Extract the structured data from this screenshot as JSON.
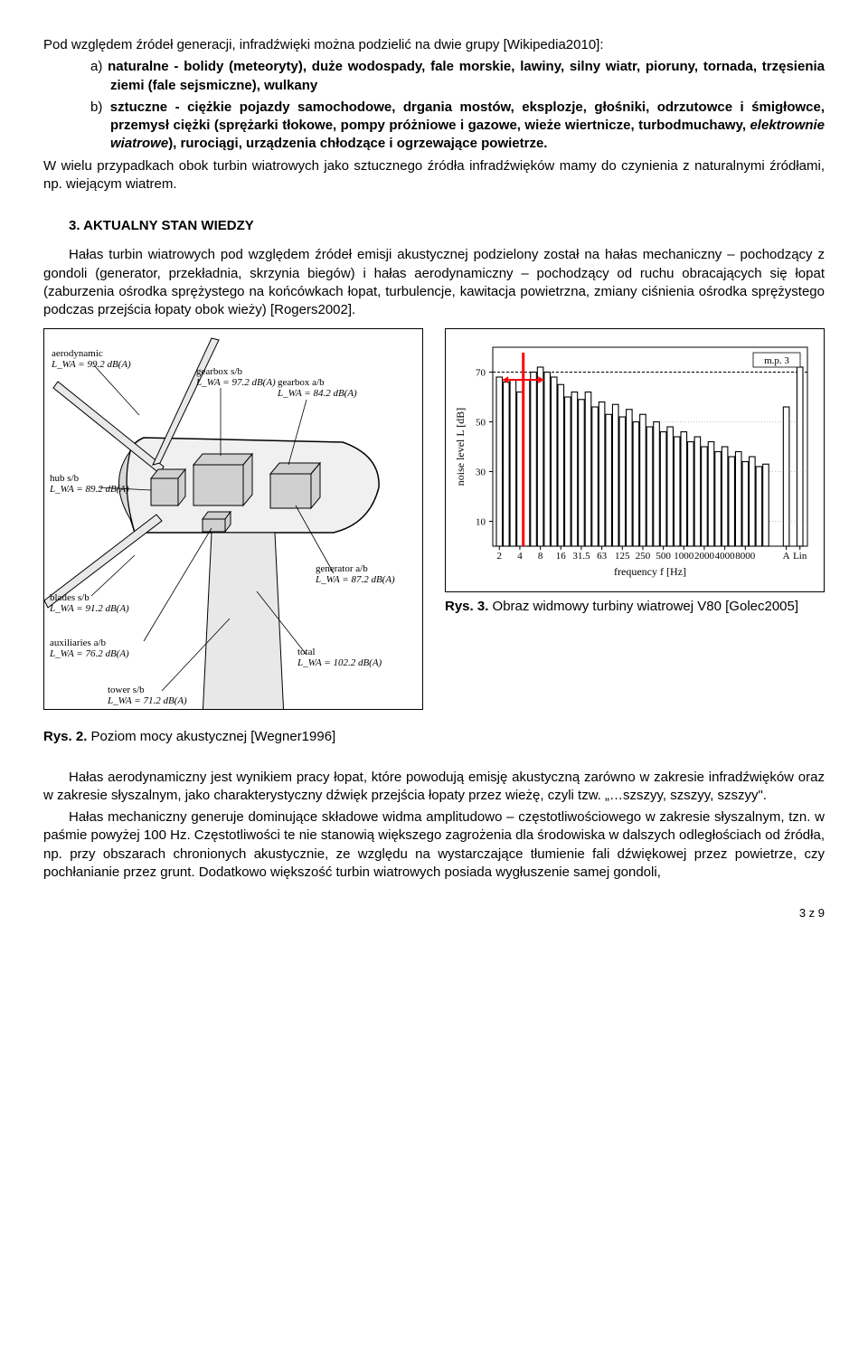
{
  "para1_lead": "Pod względem źródeł generacji, infradźwięki można podzielić na dwie grupy [Wikipedia2010]:",
  "list_a_prefix": "a)",
  "list_a": " naturalne - bolidy (meteoryty), duże wodospady, fale morskie, lawiny, silny wiatr, pioruny, tornada, trzęsienia ziemi (fale sejsmiczne), wulkany",
  "list_b_prefix": "b)",
  "list_b": " sztuczne - ciężkie pojazdy samochodowe, drgania mostów, eksplozje, głośniki, odrzutowce i śmigłowce, przemysł ciężki (sprężarki tłokowe, pompy próżniowe i gazowe, wieże wiertnicze, turbodmuchawy, elektrownie wiatrowe),  rurociągi, urządzenia chłodzące i ogrzewające powietrze.",
  "para2": "W wielu przypadkach obok turbin wiatrowych jako sztucznego źródła infradźwięków mamy do czynienia z naturalnymi źródłami, np. wiejącym wiatrem.",
  "section_num": "3.",
  "section_title": "AKTUALNY STAN WIEDZY",
  "para3": "Hałas turbin wiatrowych pod względem źródeł emisji akustycznej podzielony został na hałas mechaniczny – pochodzący z gondoli (generator, przekładnia, skrzynia biegów) i hałas aerodynamiczny – pochodzący od ruchu obracających się łopat (zaburzenia ośrodka sprężystego na końcówkach łopat, turbulencje, kawitacja powietrzna, zmiany ciśnienia ośrodka sprężystego podczas przejścia łopaty obok wieży) [Rogers2002].",
  "fig2_caption_b": "Rys. 2.",
  "fig2_caption": " Poziom mocy akustycznej [Wegner1996]",
  "fig3_caption_b": "Rys. 3.",
  "fig3_caption": " Obraz widmowy turbiny wiatrowej V80 [Golec2005]",
  "para4": "Hałas aerodynamiczny jest wynikiem pracy łopat, które powodują emisję akustyczną zarówno w zakresie infradźwięków oraz w zakresie słyszalnym, jako charakterystyczny dźwięk przejścia łopaty przez wieżę, czyli tzw. „…szszyy, szszyy, szszyy\".",
  "para5": "Hałas mechaniczny generuje dominujące składowe widma amplitudowo – częstotliwościowego w zakresie słyszalnym, tzn. w paśmie powyżej 100 Hz. Częstotliwości te nie stanowią większego zagrożenia dla środowiska w dalszych odległościach od źródła, np. przy obszarach chronionych akustycznie, ze względu na wystarczające tłumienie fali dźwiękowej przez powietrze, czy pochłanianie przez grunt. Dodatkowo większość turbin wiatrowych posiada wygłuszenie samej gondoli,",
  "page_num": "3 z 9",
  "turbine_labels": {
    "aero": {
      "line1": "aerodynamic",
      "line2": "L_WA = 99.2 dB(A)"
    },
    "gearbox_sb": {
      "line1": "gearbox s/b",
      "line2": "L_WA = 97.2 dB(A)"
    },
    "gearbox_ab": {
      "line1": "gearbox a/b",
      "line2": "L_WA = 84.2 dB(A)"
    },
    "hub": {
      "line1": "hub s/b",
      "line2": "L_WA = 89.2 dB(A)"
    },
    "blades": {
      "line1": "blades s/b",
      "line2": "L_WA = 91.2 dB(A)"
    },
    "gen_ab": {
      "line1": "generator a/b",
      "line2": "L_WA = 87.2 dB(A)"
    },
    "aux": {
      "line1": "auxiliaries a/b",
      "line2": "L_WA = 76.2 dB(A)"
    },
    "total": {
      "line1": "total",
      "line2": "L_WA = 102.2 dB(A)"
    },
    "tower": {
      "line1": "tower s/b",
      "line2": "L_WA = 71.2 dB(A)"
    }
  },
  "chart": {
    "type": "bar",
    "title_fontsize": 11,
    "bg": "#ffffff",
    "grid_color": "#808080",
    "bar_color": "#000000",
    "highlight_color": "#ff0000",
    "mp_label": "m.p. 3",
    "ylabel": "noise level L [dB]",
    "xlabel": "frequency f [Hz]",
    "ylim": [
      0,
      80
    ],
    "yticks": [
      10,
      30,
      50,
      70
    ],
    "highlight_range": [
      2,
      5
    ],
    "ref_line_y": 70,
    "xtick_labels": [
      "2",
      "4",
      "8",
      "16",
      "31.5",
      "63",
      "125",
      "250",
      "500",
      "1000",
      "2000",
      "4000",
      "8000",
      "",
      "A",
      "Lin"
    ],
    "values": [
      68,
      66,
      67,
      62,
      67,
      70,
      72,
      70,
      68,
      65,
      60,
      62,
      59,
      62,
      56,
      58,
      53,
      57,
      52,
      55,
      50,
      53,
      48,
      50,
      46,
      48,
      44,
      46,
      42,
      44,
      40,
      42,
      38,
      40,
      36,
      38,
      34,
      36,
      32,
      33,
      0,
      0,
      56,
      0,
      72
    ]
  }
}
